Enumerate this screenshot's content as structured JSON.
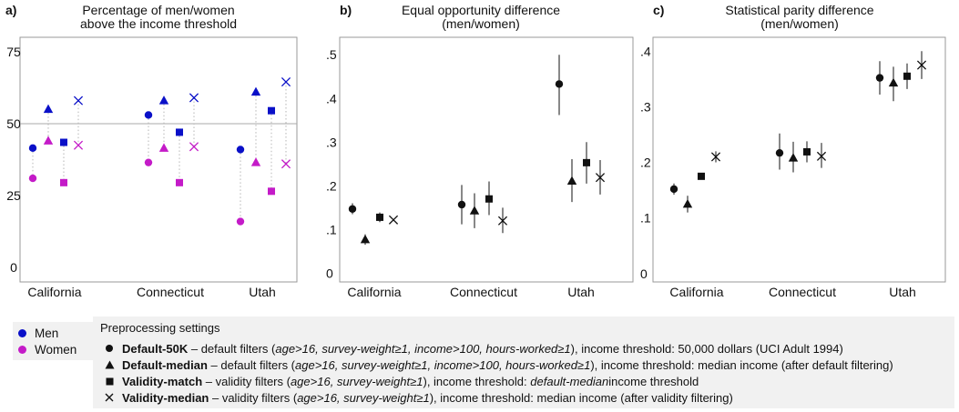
{
  "colors": {
    "men": "#0a10c8",
    "women": "#c41bc8",
    "black": "#111111",
    "frame": "#999999"
  },
  "panels": [
    {
      "letter": "a)",
      "title_lines": [
        "Percentage of men/women",
        "above the income threshold"
      ],
      "yticks": [
        "75",
        "50",
        "25",
        "0"
      ],
      "categories": [
        "California",
        "Connecticut",
        "Utah"
      ]
    },
    {
      "letter": "b)",
      "title_lines": [
        "Equal opportunity difference",
        "(men/women)"
      ],
      "yticks": [
        ".5",
        ".4",
        ".3",
        ".2",
        ".1",
        "0"
      ],
      "categories": [
        "California",
        "Connecticut",
        "Utah"
      ]
    },
    {
      "letter": "c)",
      "title_lines": [
        "Statistical parity difference",
        "(men/women)"
      ],
      "yticks": [
        ".4",
        ".3",
        ".2",
        ".1",
        "0"
      ],
      "categories": [
        "California",
        "Connecticut",
        "Utah"
      ]
    }
  ],
  "chart_data": [
    {
      "type": "scatter",
      "title": "Percentage of men/women above the income threshold",
      "categories": [
        "California",
        "Connecticut",
        "Utah"
      ],
      "ylim": [
        -5,
        80
      ],
      "reference_line": 50,
      "grid": false,
      "series": [
        {
          "name": "Men",
          "setting": "Default-50K",
          "marker": "circle",
          "values": [
            41.5,
            53.0,
            41.0
          ]
        },
        {
          "name": "Men",
          "setting": "Default-median",
          "marker": "triangle",
          "values": [
            55.0,
            58.0,
            61.0
          ]
        },
        {
          "name": "Men",
          "setting": "Validity-match",
          "marker": "square",
          "values": [
            43.5,
            47.0,
            54.5
          ]
        },
        {
          "name": "Men",
          "setting": "Validity-median",
          "marker": "x",
          "values": [
            58.0,
            59.0,
            64.5
          ]
        },
        {
          "name": "Women",
          "setting": "Default-50K",
          "marker": "circle",
          "values": [
            31.0,
            36.5,
            16.0
          ]
        },
        {
          "name": "Women",
          "setting": "Default-median",
          "marker": "triangle",
          "values": [
            44.0,
            41.5,
            36.5
          ]
        },
        {
          "name": "Women",
          "setting": "Validity-match",
          "marker": "square",
          "values": [
            29.5,
            29.5,
            26.5
          ]
        },
        {
          "name": "Women",
          "setting": "Validity-median",
          "marker": "x",
          "values": [
            42.5,
            42.0,
            36.0
          ]
        }
      ]
    },
    {
      "type": "scatter",
      "title": "Equal opportunity difference (men/women)",
      "categories": [
        "California",
        "Connecticut",
        "Utah"
      ],
      "ylim": [
        -0.02,
        0.54
      ],
      "grid": false,
      "series": [
        {
          "name": "Default-50K",
          "marker": "circle",
          "values": [
            0.147,
            0.157,
            0.433
          ],
          "ci_low": [
            0.135,
            0.112,
            0.362
          ],
          "ci_high": [
            0.16,
            0.202,
            0.5
          ]
        },
        {
          "name": "Default-median",
          "marker": "triangle",
          "values": [
            0.077,
            0.143,
            0.211
          ],
          "ci_low": [
            0.065,
            0.103,
            0.163
          ],
          "ci_high": [
            0.089,
            0.183,
            0.261
          ]
        },
        {
          "name": "Validity-match",
          "marker": "square",
          "values": [
            0.128,
            0.17,
            0.253
          ],
          "ci_low": [
            0.117,
            0.133,
            0.205
          ],
          "ci_high": [
            0.139,
            0.21,
            0.3
          ]
        },
        {
          "name": "Validity-median",
          "marker": "x",
          "values": [
            0.122,
            0.12,
            0.219
          ],
          "ci_low": [
            0.122,
            0.092,
            0.18
          ],
          "ci_high": [
            0.122,
            0.15,
            0.259
          ]
        }
      ]
    },
    {
      "type": "scatter",
      "title": "Statistical parity difference (men/women)",
      "categories": [
        "California",
        "Connecticut",
        "Utah"
      ],
      "ylim": [
        -0.015,
        0.425
      ],
      "grid": false,
      "series": [
        {
          "name": "Default-50K",
          "marker": "circle",
          "values": [
            0.152,
            0.217,
            0.352
          ],
          "ci_low": [
            0.142,
            0.187,
            0.322
          ],
          "ci_high": [
            0.162,
            0.252,
            0.382
          ]
        },
        {
          "name": "Default-median",
          "marker": "triangle",
          "values": [
            0.125,
            0.208,
            0.343
          ],
          "ci_low": [
            0.11,
            0.182,
            0.31
          ],
          "ci_high": [
            0.14,
            0.237,
            0.372
          ]
        },
        {
          "name": "Validity-match",
          "marker": "square",
          "values": [
            0.175,
            0.219,
            0.355
          ],
          "ci_low": [
            0.175,
            0.2,
            0.332
          ],
          "ci_high": [
            0.175,
            0.238,
            0.378
          ]
        },
        {
          "name": "Validity-median",
          "marker": "x",
          "values": [
            0.21,
            0.211,
            0.375
          ],
          "ci_low": [
            0.2,
            0.19,
            0.35
          ],
          "ci_high": [
            0.22,
            0.235,
            0.4
          ]
        }
      ]
    }
  ],
  "legend_gender": [
    {
      "label": "Men",
      "color": "#0a10c8"
    },
    {
      "label": "Women",
      "color": "#c41bc8"
    }
  ],
  "settings": {
    "title": "Preprocessing settings",
    "items": [
      {
        "marker": "circle",
        "name": "Default-50K",
        "sep": " – default filters (",
        "filters": "age>16, survey-weight≥1, income>100, hours-worked≥1",
        "after": "), income threshold: 50,000 dollars (UCI Adult 1994)",
        "threshold_em": "",
        "tail": ""
      },
      {
        "marker": "triangle",
        "name": "Default-median",
        "sep": " – default filters (",
        "filters": "age>16, survey-weight≥1, income>100, hours-worked≥1",
        "after": "), income threshold: median income (after default filtering)",
        "threshold_em": "",
        "tail": ""
      },
      {
        "marker": "square",
        "name": "Validity-match",
        "sep": " – validity filters (",
        "filters": "age>16, survey-weight≥1",
        "after": "), income threshold: ",
        "threshold_em": "default-median",
        "tail": "income threshold"
      },
      {
        "marker": "x",
        "name": "Validity-median",
        "sep": " – validity filters (",
        "filters": "age>16, survey-weight≥1",
        "after": "), income threshold: median income (after validity filtering)",
        "threshold_em": "",
        "tail": ""
      }
    ]
  }
}
